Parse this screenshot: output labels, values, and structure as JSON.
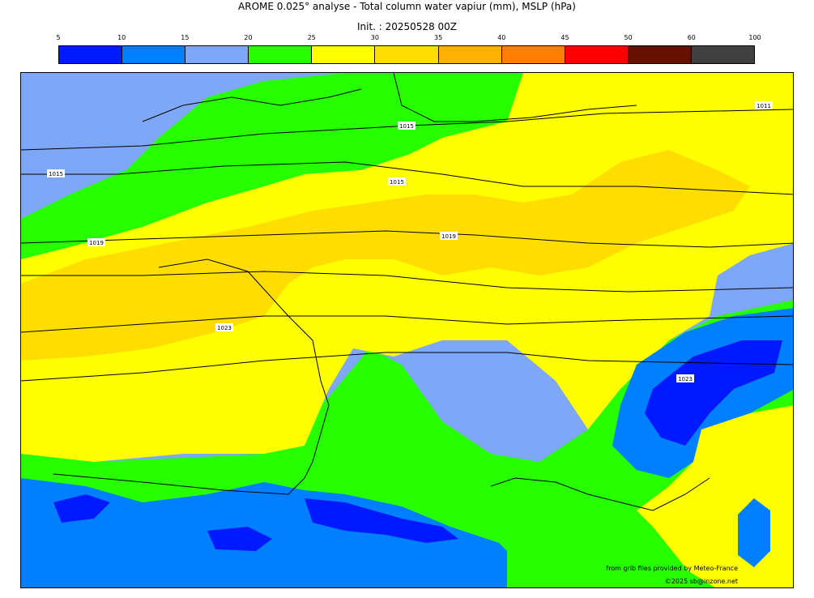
{
  "title": "AROME 0.025° analyse - Total column water vapiur (mm), MSLP (hPa)",
  "init": "Init. : 20250528 00Z",
  "colorbar": {
    "ticks": [
      "5",
      "10",
      "15",
      "20",
      "25",
      "30",
      "35",
      "40",
      "45",
      "50",
      "60",
      "100"
    ],
    "colors": [
      "#0019ff",
      "#0080ff",
      "#7fa7f7",
      "#26ff00",
      "#ffff00",
      "#ffdd00",
      "#ffb000",
      "#ff8000",
      "#ff0000",
      "#661100",
      "#404040"
    ]
  },
  "isobar_labels": [
    "1015",
    "1015",
    "1019",
    "1019",
    "1023",
    "1023",
    "1015",
    "1011"
  ],
  "credits": {
    "line1": "from grib files provided by Meteo-France",
    "line2": "©2025 sb@inzone.net"
  }
}
